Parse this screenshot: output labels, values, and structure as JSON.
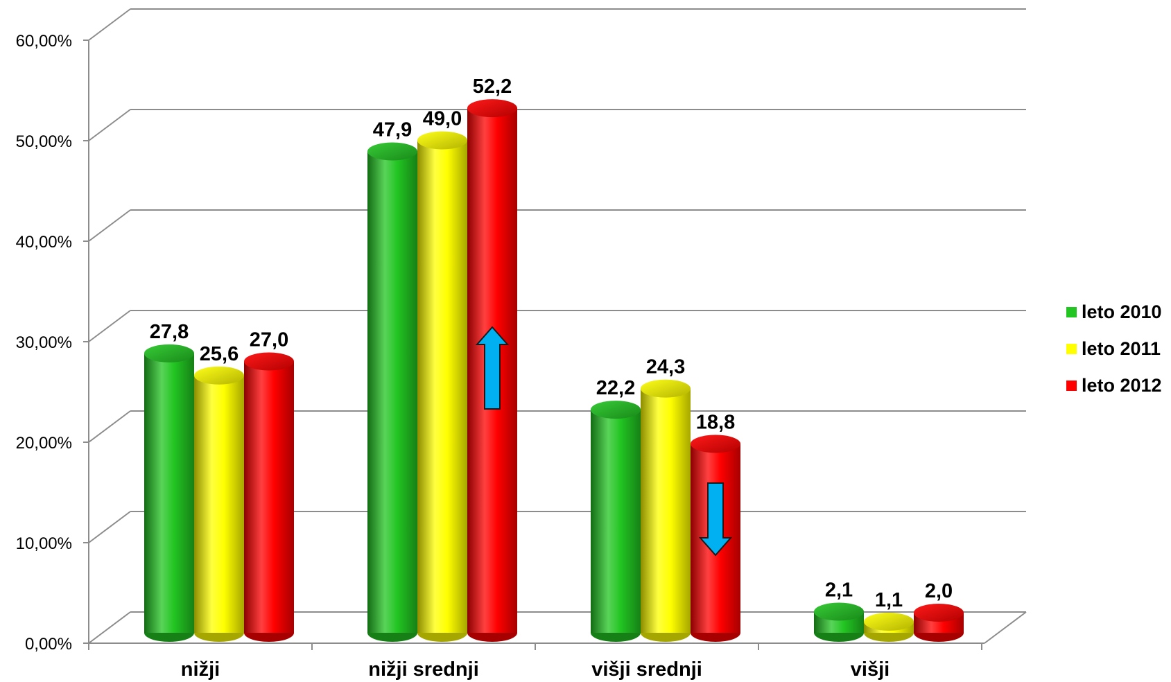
{
  "chart_data": {
    "type": "bar",
    "categories": [
      "nižji",
      "nižji srednji",
      "višji srednji",
      "višji"
    ],
    "series": [
      {
        "name": "leto 2010",
        "color": "#22c522",
        "values": [
          27.8,
          47.9,
          22.2,
          2.1
        ],
        "labels": [
          "27,8",
          "47,9",
          "22,2",
          "2,1"
        ]
      },
      {
        "name": "leto 2011",
        "color": "#ffff00",
        "values": [
          25.6,
          49.0,
          24.3,
          1.1
        ],
        "labels": [
          "25,6",
          "49,0",
          "24,3",
          "1,1"
        ]
      },
      {
        "name": "leto 2012",
        "color": "#ff0000",
        "values": [
          27.0,
          52.2,
          18.8,
          2.0
        ],
        "labels": [
          "27,0",
          "52,2",
          "18,8",
          "2,0"
        ]
      }
    ],
    "y_ticks": [
      "0,00%",
      "10,00%",
      "20,00%",
      "30,00%",
      "40,00%",
      "50,00%",
      "60,00%"
    ],
    "ylim": [
      0,
      60
    ],
    "grid": true,
    "legend_position": "right",
    "annotations": [
      {
        "type": "up-arrow",
        "category": "nižji srednji",
        "series": "leto 2012",
        "color": "#00b0f0"
      },
      {
        "type": "down-arrow",
        "category": "višji srednji",
        "series": "leto 2012",
        "color": "#00b0f0"
      }
    ]
  }
}
